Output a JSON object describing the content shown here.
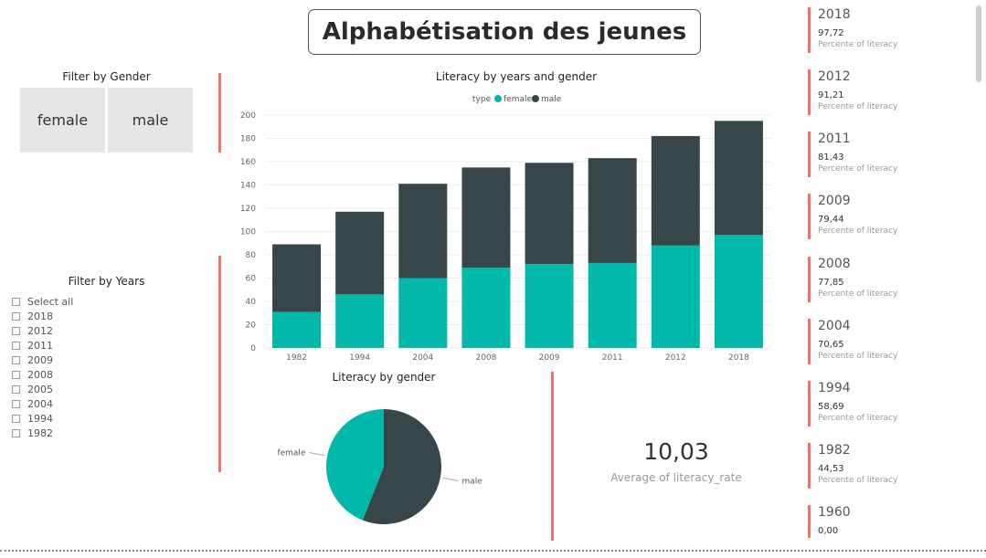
{
  "title": "Alphabétisation des jeunes",
  "gender_filter": {
    "title": "Filter by Gender",
    "options": [
      "female",
      "male"
    ]
  },
  "year_filter": {
    "title": "Filter by Years",
    "items": [
      "Select all",
      "2018",
      "2012",
      "2011",
      "2009",
      "2008",
      "2005",
      "2004",
      "1994",
      "1982"
    ]
  },
  "chart_data": [
    {
      "type": "bar",
      "stacked": true,
      "title": "Literacy by years and gender",
      "legend_title": "type",
      "legend_position": "top",
      "categories": [
        "1982",
        "1994",
        "2004",
        "2008",
        "2009",
        "2011",
        "2012",
        "2018"
      ],
      "series": [
        {
          "name": "female",
          "color": "#01b8aa",
          "values": [
            31,
            46,
            60,
            69,
            72,
            73,
            88,
            97
          ]
        },
        {
          "name": "male",
          "color": "#374649",
          "values": [
            58,
            71,
            81,
            86,
            87,
            90,
            94,
            98
          ]
        }
      ],
      "ylim": [
        0,
        200
      ],
      "yticks": [
        0,
        20,
        40,
        60,
        80,
        100,
        120,
        140,
        160,
        180,
        200
      ],
      "grid": true
    },
    {
      "type": "pie",
      "title": "Literacy by gender",
      "slices": [
        {
          "name": "female",
          "value": 44,
          "color": "#01b8aa"
        },
        {
          "name": "male",
          "value": 56,
          "color": "#374649"
        }
      ]
    }
  ],
  "kpi": {
    "value": "10,03",
    "label": "Average of literacy_rate"
  },
  "cards": [
    {
      "year": "2018",
      "value": "97,72",
      "label": "Percente of literacy"
    },
    {
      "year": "2012",
      "value": "91,21",
      "label": "Percente of literacy"
    },
    {
      "year": "2011",
      "value": "81,43",
      "label": "Percente of literacy"
    },
    {
      "year": "2009",
      "value": "79,44",
      "label": "Percente of literacy"
    },
    {
      "year": "2008",
      "value": "77,85",
      "label": "Percente of literacy"
    },
    {
      "year": "2004",
      "value": "70,65",
      "label": "Percente of literacy"
    },
    {
      "year": "1994",
      "value": "58,69",
      "label": "Percente of literacy"
    },
    {
      "year": "1982",
      "value": "44,53",
      "label": "Percente of literacy"
    },
    {
      "year": "1960",
      "value": "0,00",
      "label": ""
    }
  ],
  "colors": {
    "accent_red": "#f2726b",
    "female": "#01b8aa",
    "male": "#374649"
  }
}
